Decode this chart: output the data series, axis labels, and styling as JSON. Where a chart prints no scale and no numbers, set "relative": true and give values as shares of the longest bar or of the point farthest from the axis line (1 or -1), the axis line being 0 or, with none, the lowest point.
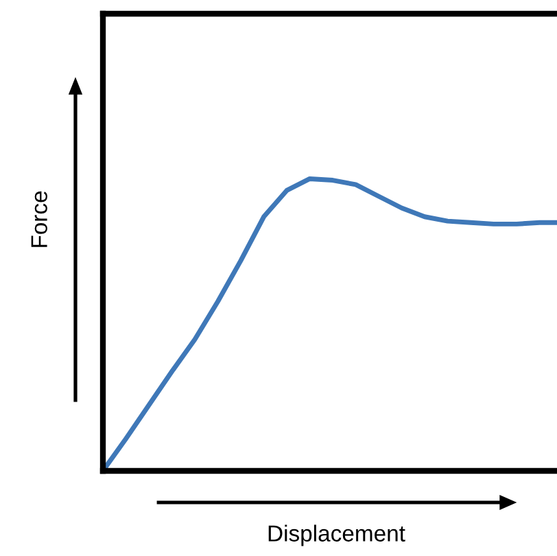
{
  "chart_data": {
    "type": "line",
    "xlabel": "Displacement",
    "ylabel": "Force",
    "relative": true,
    "color": "#3f78b8",
    "categories": [
      null,
      null,
      null,
      null,
      null,
      null,
      null,
      null,
      null,
      null,
      null,
      null,
      null,
      null,
      null,
      null,
      null,
      null,
      null,
      null,
      null
    ],
    "values": [
      0,
      0.11,
      0.225,
      0.34,
      0.45,
      0.58,
      0.72,
      0.87,
      0.96,
      1,
      0.995,
      0.98,
      0.94,
      0.9,
      0.87,
      0.855,
      0.85,
      0.845,
      0.845,
      0.85,
      0.85
    ]
  }
}
